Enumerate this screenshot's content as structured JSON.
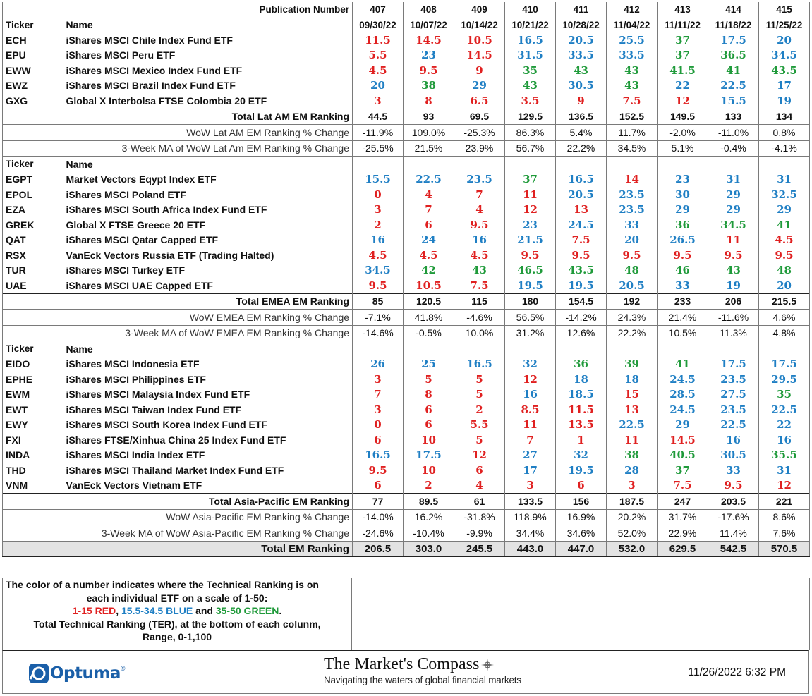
{
  "header": {
    "pub_label": "Publication Number",
    "pub_numbers": [
      "407",
      "408",
      "409",
      "410",
      "411",
      "412",
      "413",
      "414",
      "415"
    ],
    "ticker_label": "Ticker",
    "name_label": "Name",
    "dates": [
      "09/30/22",
      "10/07/22",
      "10/14/22",
      "10/21/22",
      "10/28/22",
      "11/04/22",
      "11/11/22",
      "11/18/22",
      "11/25/22"
    ]
  },
  "sections": [
    {
      "ticker_label": "Ticker",
      "name_label": "Name",
      "rows": [
        {
          "ticker": "ECH",
          "name": "iShares MSCI Chile Index Fund ETF",
          "values": [
            "11.5",
            "14.5",
            "10.5",
            "16.5",
            "20.5",
            "25.5",
            "37",
            "17.5",
            "20"
          ],
          "colors": [
            "red",
            "red",
            "red",
            "blue",
            "blue",
            "blue",
            "green",
            "blue",
            "blue"
          ]
        },
        {
          "ticker": "EPU",
          "name": "iShares MSCI Peru ETF",
          "values": [
            "5.5",
            "23",
            "14.5",
            "31.5",
            "33.5",
            "33.5",
            "37",
            "36.5",
            "34.5"
          ],
          "colors": [
            "red",
            "blue",
            "red",
            "blue",
            "blue",
            "blue",
            "green",
            "green",
            "blue"
          ]
        },
        {
          "ticker": "EWW",
          "name": "iShares MSCI Mexico Index Fund ETF",
          "values": [
            "4.5",
            "9.5",
            "9",
            "35",
            "43",
            "43",
            "41.5",
            "41",
            "43.5"
          ],
          "colors": [
            "red",
            "red",
            "red",
            "green",
            "green",
            "green",
            "green",
            "green",
            "green"
          ]
        },
        {
          "ticker": "EWZ",
          "name": "iShares MSCI Brazil Index Fund ETF",
          "values": [
            "20",
            "38",
            "29",
            "43",
            "30.5",
            "43",
            "22",
            "22.5",
            "17"
          ],
          "colors": [
            "blue",
            "green",
            "blue",
            "green",
            "blue",
            "green",
            "blue",
            "blue",
            "blue"
          ]
        },
        {
          "ticker": "GXG",
          "name": "Global X Interbolsa FTSE Colombia 20 ETF",
          "values": [
            "3",
            "8",
            "6.5",
            "3.5",
            "9",
            "7.5",
            "12",
            "15.5",
            "19"
          ],
          "colors": [
            "red",
            "red",
            "red",
            "red",
            "red",
            "red",
            "red",
            "blue",
            "blue"
          ]
        }
      ],
      "total": {
        "label": "Total Lat AM EM Ranking",
        "values": [
          "44.5",
          "93",
          "69.5",
          "129.5",
          "136.5",
          "152.5",
          "149.5",
          "133",
          "134"
        ]
      },
      "wow": {
        "label": "WoW Lat AM EM Ranking % Change",
        "values": [
          "-11.9%",
          "109.0%",
          "-25.3%",
          "86.3%",
          "5.4%",
          "11.7%",
          "-2.0%",
          "-11.0%",
          "0.8%"
        ]
      },
      "ma": {
        "label": "3-Week MA of WoW Lat Am EM Ranking % Change",
        "values": [
          "-25.5%",
          "21.5%",
          "23.9%",
          "56.7%",
          "22.2%",
          "34.5%",
          "5.1%",
          "-0.4%",
          "-4.1%"
        ]
      }
    },
    {
      "ticker_label": "Ticker",
      "name_label": "Name",
      "rows": [
        {
          "ticker": "EGPT",
          "name": "Market Vectors Eqypt Index ETF",
          "values": [
            "15.5",
            "22.5",
            "23.5",
            "37",
            "16.5",
            "14",
            "23",
            "31",
            "31"
          ],
          "colors": [
            "blue",
            "blue",
            "blue",
            "green",
            "blue",
            "red",
            "blue",
            "blue",
            "blue"
          ]
        },
        {
          "ticker": "EPOL",
          "name": "iShares MSCI Poland ETF",
          "values": [
            "0",
            "4",
            "7",
            "11",
            "20.5",
            "23.5",
            "30",
            "29",
            "32.5"
          ],
          "colors": [
            "red",
            "red",
            "red",
            "red",
            "blue",
            "blue",
            "blue",
            "blue",
            "blue"
          ]
        },
        {
          "ticker": "EZA",
          "name": "iShares MSCI South Africa Index Fund ETF",
          "values": [
            "3",
            "7",
            "4",
            "12",
            "13",
            "23.5",
            "29",
            "29",
            "29"
          ],
          "colors": [
            "red",
            "red",
            "red",
            "red",
            "red",
            "blue",
            "blue",
            "blue",
            "blue"
          ]
        },
        {
          "ticker": "GREK",
          "name": "Global X FTSE Greece 20 ETF",
          "values": [
            "2",
            "6",
            "9.5",
            "23",
            "24.5",
            "33",
            "36",
            "34.5",
            "41"
          ],
          "colors": [
            "red",
            "red",
            "red",
            "blue",
            "blue",
            "blue",
            "green",
            "green",
            "green"
          ]
        },
        {
          "ticker": "QAT",
          "name": "iShares MSCI Qatar Capped ETF",
          "values": [
            "16",
            "24",
            "16",
            "21.5",
            "7.5",
            "20",
            "26.5",
            "11",
            "4.5"
          ],
          "colors": [
            "blue",
            "blue",
            "blue",
            "blue",
            "red",
            "blue",
            "blue",
            "red",
            "red"
          ]
        },
        {
          "ticker": "RSX",
          "name": "VanEck Vectors Russia ETF (Trading Halted)",
          "values": [
            "4.5",
            "4.5",
            "4.5",
            "9.5",
            "9.5",
            "9.5",
            "9.5",
            "9.5",
            "9.5"
          ],
          "colors": [
            "red",
            "red",
            "red",
            "red",
            "red",
            "red",
            "red",
            "red",
            "red"
          ]
        },
        {
          "ticker": "TUR",
          "name": "iShares MSCI Turkey ETF",
          "values": [
            "34.5",
            "42",
            "43",
            "46.5",
            "43.5",
            "48",
            "46",
            "43",
            "48"
          ],
          "colors": [
            "blue",
            "green",
            "green",
            "green",
            "green",
            "green",
            "green",
            "green",
            "green"
          ]
        },
        {
          "ticker": "UAE",
          "name": "iShares MSCI UAE Capped ETF",
          "values": [
            "9.5",
            "10.5",
            "7.5",
            "19.5",
            "19.5",
            "20.5",
            "33",
            "19",
            "20"
          ],
          "colors": [
            "red",
            "red",
            "red",
            "blue",
            "blue",
            "blue",
            "blue",
            "blue",
            "blue"
          ]
        }
      ],
      "total": {
        "label": "Total EMEA EM Ranking",
        "values": [
          "85",
          "120.5",
          "115",
          "180",
          "154.5",
          "192",
          "233",
          "206",
          "215.5"
        ]
      },
      "wow": {
        "label": "WoW EMEA EM Ranking % Change",
        "values": [
          "-7.1%",
          "41.8%",
          "-4.6%",
          "56.5%",
          "-14.2%",
          "24.3%",
          "21.4%",
          "-11.6%",
          "4.6%"
        ]
      },
      "ma": {
        "label": "3-Week MA of WoW EMEA EM Ranking % Change",
        "values": [
          "-14.6%",
          "-0.5%",
          "10.0%",
          "31.2%",
          "12.6%",
          "22.2%",
          "10.5%",
          "11.3%",
          "4.8%"
        ]
      }
    },
    {
      "ticker_label": "Ticker",
      "name_label": "Name",
      "rows": [
        {
          "ticker": "EIDO",
          "name": "iShares MSCI Indonesia ETF",
          "values": [
            "26",
            "25",
            "16.5",
            "32",
            "36",
            "39",
            "41",
            "17.5",
            "17.5"
          ],
          "colors": [
            "blue",
            "blue",
            "blue",
            "blue",
            "green",
            "green",
            "green",
            "blue",
            "blue"
          ]
        },
        {
          "ticker": "EPHE",
          "name": "iShares MSCI Philippines ETF",
          "values": [
            "3",
            "5",
            "5",
            "12",
            "18",
            "18",
            "24.5",
            "23.5",
            "29.5"
          ],
          "colors": [
            "red",
            "red",
            "red",
            "red",
            "blue",
            "blue",
            "blue",
            "blue",
            "blue"
          ]
        },
        {
          "ticker": "EWM",
          "name": "iShares MSCI Malaysia Index Fund ETF",
          "values": [
            "7",
            "8",
            "5",
            "16",
            "18.5",
            "15",
            "28.5",
            "27.5",
            "35"
          ],
          "colors": [
            "red",
            "red",
            "red",
            "blue",
            "blue",
            "red",
            "blue",
            "blue",
            "green"
          ]
        },
        {
          "ticker": "EWT",
          "name": "iShares MSCI Taiwan Index Fund ETF",
          "values": [
            "3",
            "6",
            "2",
            "8.5",
            "11.5",
            "13",
            "24.5",
            "23.5",
            "22.5"
          ],
          "colors": [
            "red",
            "red",
            "red",
            "red",
            "red",
            "red",
            "blue",
            "blue",
            "blue"
          ]
        },
        {
          "ticker": "EWY",
          "name": "iShares MSCI South Korea Index Fund ETF",
          "values": [
            "0",
            "6",
            "5.5",
            "11",
            "13.5",
            "22.5",
            "29",
            "22.5",
            "22"
          ],
          "colors": [
            "red",
            "red",
            "red",
            "red",
            "red",
            "blue",
            "blue",
            "blue",
            "blue"
          ]
        },
        {
          "ticker": "FXI",
          "name": "iShares FTSE/Xinhua China 25 Index Fund ETF",
          "values": [
            "6",
            "10",
            "5",
            "7",
            "1",
            "11",
            "14.5",
            "16",
            "16"
          ],
          "colors": [
            "red",
            "red",
            "red",
            "red",
            "red",
            "red",
            "red",
            "blue",
            "blue"
          ]
        },
        {
          "ticker": "INDA",
          "name": "iShares MSCI India Index ETF",
          "values": [
            "16.5",
            "17.5",
            "12",
            "27",
            "32",
            "38",
            "40.5",
            "30.5",
            "35.5"
          ],
          "colors": [
            "blue",
            "blue",
            "red",
            "blue",
            "blue",
            "green",
            "green",
            "blue",
            "green"
          ]
        },
        {
          "ticker": "THD",
          "name": "iShares MSCI Thailand Market Index Fund ETF",
          "values": [
            "9.5",
            "10",
            "6",
            "17",
            "19.5",
            "28",
            "37",
            "33",
            "31"
          ],
          "colors": [
            "red",
            "red",
            "red",
            "blue",
            "blue",
            "blue",
            "green",
            "blue",
            "blue"
          ]
        },
        {
          "ticker": "VNM",
          "name": "VanEck Vectors Vietnam ETF",
          "values": [
            "6",
            "2",
            "4",
            "3",
            "6",
            "3",
            "7.5",
            "9.5",
            "12"
          ],
          "colors": [
            "red",
            "red",
            "red",
            "red",
            "red",
            "red",
            "red",
            "red",
            "red"
          ]
        }
      ],
      "total": {
        "label": "Total Asia-Pacific EM Ranking",
        "values": [
          "77",
          "89.5",
          "61",
          "133.5",
          "156",
          "187.5",
          "247",
          "203.5",
          "221"
        ]
      },
      "wow": {
        "label": "WoW Asia-Pacific EM Ranking % Change",
        "values": [
          "-14.0%",
          "16.2%",
          "-31.8%",
          "118.9%",
          "16.9%",
          "20.2%",
          "31.7%",
          "-17.6%",
          "8.6%"
        ]
      },
      "ma": {
        "label": "3-Week MA of WoW Asia-Pacific EM Ranking % Change",
        "values": [
          "-24.6%",
          "-10.4%",
          "-9.9%",
          "34.4%",
          "34.6%",
          "52.0%",
          "22.9%",
          "11.4%",
          "7.6%"
        ]
      }
    }
  ],
  "grand_total": {
    "label": "Total EM Ranking",
    "values": [
      "206.5",
      "303.0",
      "245.5",
      "443.0",
      "447.0",
      "532.0",
      "629.5",
      "542.5",
      "570.5"
    ]
  },
  "legend": {
    "line1": "The color of a number indicates where the Technical Ranking is on",
    "line2": "each individual ETF on a scale of 1-50:",
    "red_text": "1-15 RED",
    "sep1": ", ",
    "blue_text": "15.5-34.5 BLUE",
    "sep2": " and ",
    "green_text": "35-50 GREEN",
    "end": ".",
    "line4": "Total Technical Ranking (TER),  at the bottom of each colunm,",
    "line5": "Range, 0-1,100"
  },
  "footer": {
    "logo_text": "Optuma",
    "logo_tm": "®",
    "brand_title": "The Market's Compass",
    "brand_tagline": "Navigating the waters of global financial markets",
    "timestamp": "11/26/2022 6:32 PM"
  },
  "colors": {
    "red": "#e02020",
    "blue": "#1f7fc4",
    "green": "#1f9a3a",
    "logo": "#1a5fa8"
  }
}
